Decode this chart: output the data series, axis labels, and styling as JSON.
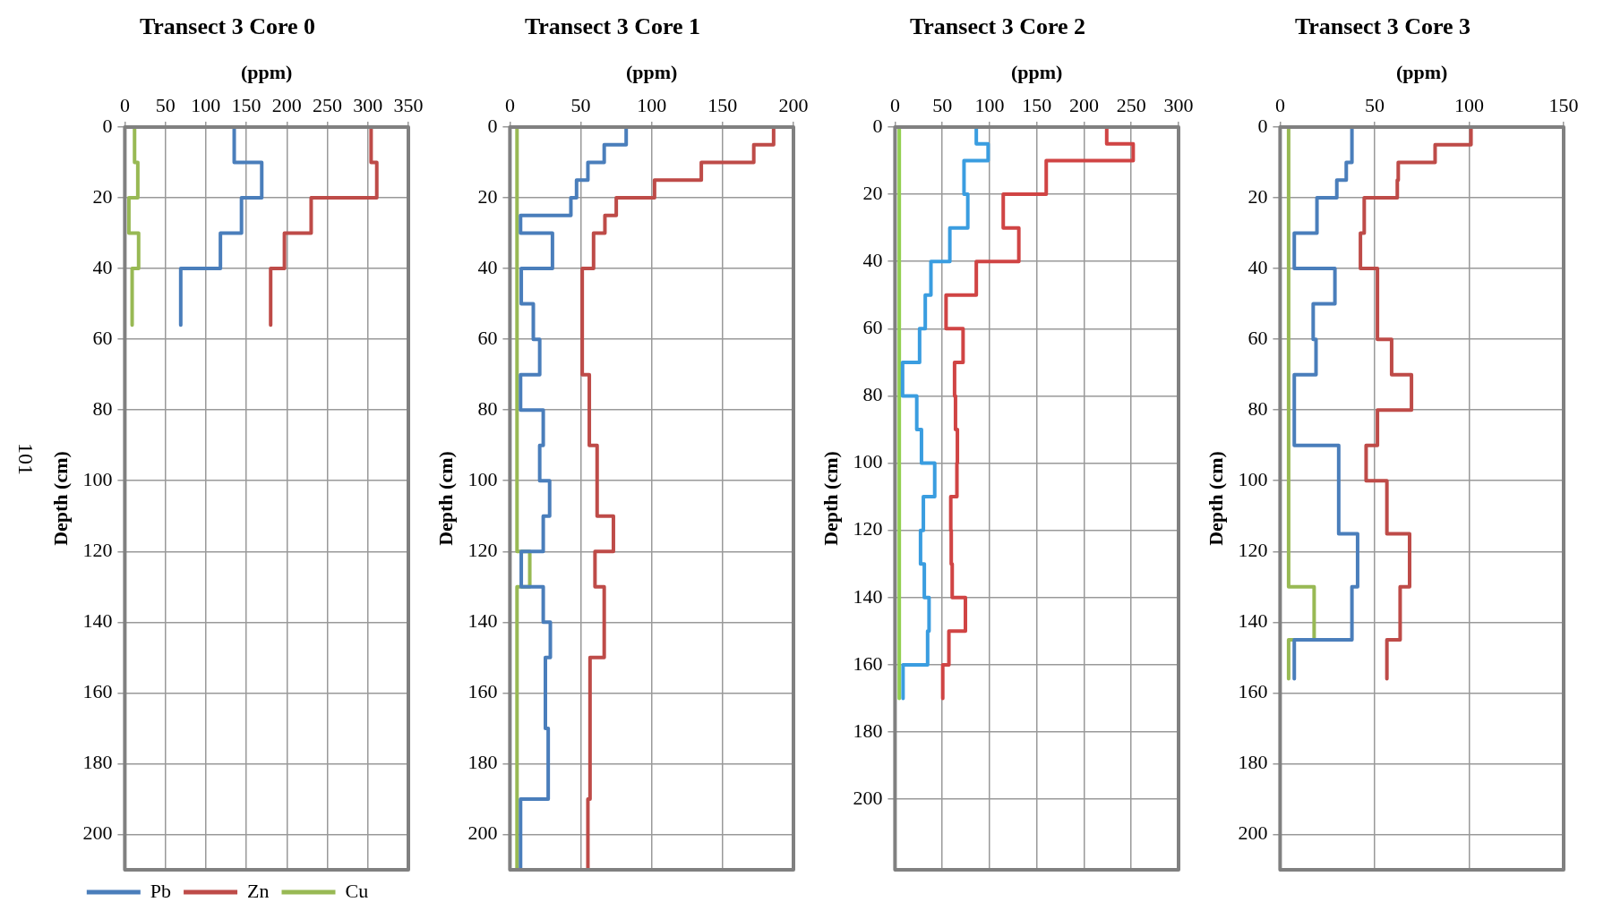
{
  "chart_data": [
    {
      "type": "line",
      "title": "Transect 3 Core 0",
      "xlabel": "(ppm)",
      "ylabel": "Depth (cm)",
      "orientation": "horizontal",
      "xlim": [
        0,
        350
      ],
      "xticks": [
        0,
        50,
        100,
        150,
        200,
        250,
        300,
        350
      ],
      "ylim": [
        210,
        0
      ],
      "yticks": [
        0,
        20,
        40,
        60,
        80,
        100,
        120,
        140,
        160,
        180,
        200
      ],
      "grid": true,
      "legend": "bottom",
      "marker": "none",
      "line_style": "solid",
      "annotations": [
        "101"
      ],
      "series": [
        {
          "name": "Pb",
          "color": "#4a7ebb",
          "x": [
            0,
            10,
            10,
            20,
            20,
            30,
            30,
            40,
            40,
            56
          ],
          "values": [
            135,
            135,
            169,
            169,
            144,
            144,
            118,
            118,
            69,
            69
          ]
        },
        {
          "name": "Zn",
          "color": "#be4b48",
          "x": [
            0,
            10,
            10,
            20,
            20,
            30,
            30,
            40,
            40,
            56
          ],
          "values": [
            304,
            304,
            311,
            311,
            230,
            230,
            197,
            197,
            180,
            180
          ]
        },
        {
          "name": "Cu",
          "color": "#98b954",
          "x": [
            0,
            10,
            10,
            20,
            20,
            30,
            30,
            40,
            40,
            56
          ],
          "values": [
            12,
            12,
            16,
            16,
            5,
            5,
            17,
            17,
            9,
            9
          ]
        }
      ]
    },
    {
      "type": "line",
      "title": "Transect 3 Core 1",
      "xlabel": "(ppm)",
      "ylabel": "Depth (cm)",
      "orientation": "horizontal",
      "xlim": [
        0,
        200
      ],
      "xticks": [
        0,
        50,
        100,
        150,
        200
      ],
      "ylim": [
        210,
        0
      ],
      "yticks": [
        0,
        20,
        40,
        60,
        80,
        100,
        120,
        140,
        160,
        180,
        200
      ],
      "grid": true,
      "marker": "none",
      "line_style": "solid",
      "series": [
        {
          "color": "#4a7ebb",
          "x": [
            0,
            5,
            5,
            10,
            10,
            15,
            15,
            20,
            20,
            25,
            25,
            30,
            30,
            40,
            40,
            50,
            50,
            60,
            60,
            70,
            70,
            80,
            80,
            90,
            90,
            100,
            100,
            110,
            110,
            120,
            120,
            130,
            130,
            140,
            140,
            150,
            150,
            170,
            170,
            190,
            190,
            210
          ],
          "values": [
            82,
            82,
            66.5,
            66.5,
            55,
            55,
            47,
            47,
            43,
            43,
            7.5,
            7.5,
            30,
            30,
            8,
            8,
            16.5,
            16.5,
            21,
            21,
            7.5,
            7.5,
            23.5,
            23.5,
            21,
            21,
            28,
            28,
            23.5,
            23.5,
            8,
            8,
            23.5,
            23.5,
            28.5,
            28.5,
            25,
            25,
            27,
            27,
            7.5,
            7.5
          ]
        },
        {
          "color": "#be4b48",
          "x": [
            0,
            5,
            5,
            10,
            10,
            15,
            15,
            20,
            20,
            25,
            25,
            30,
            30,
            40,
            40,
            70,
            70,
            90,
            90,
            110,
            110,
            120,
            120,
            130,
            130,
            150,
            150,
            190,
            190,
            210
          ],
          "values": [
            186,
            186,
            172,
            172,
            135,
            135,
            102,
            102,
            75,
            75,
            67,
            67,
            59,
            59,
            51,
            51,
            56,
            56,
            61.5,
            61.5,
            73,
            73,
            60,
            60,
            66.5,
            66.5,
            56.5,
            56.5,
            55,
            55
          ]
        },
        {
          "color": "#98b954",
          "x": [
            0,
            120,
            120,
            130,
            130,
            210
          ],
          "values": [
            5,
            5,
            14,
            14,
            5,
            5
          ]
        }
      ]
    },
    {
      "type": "line",
      "title": "Transect 3 Core 2",
      "xlabel": "(ppm)",
      "ylabel": "Depth (cm)",
      "orientation": "horizontal",
      "xlim": [
        0,
        300
      ],
      "xticks": [
        0,
        50,
        100,
        150,
        200,
        250,
        300
      ],
      "ylim": [
        221,
        0
      ],
      "yticks": [
        0,
        20,
        40,
        60,
        80,
        100,
        120,
        140,
        160,
        180,
        200
      ],
      "grid": true,
      "marker": "none",
      "line_style": "solid",
      "series": [
        {
          "color": "#3a9de0",
          "x": [
            0,
            5,
            5,
            10,
            10,
            20,
            20,
            30,
            30,
            40,
            40,
            50,
            50,
            60,
            60,
            70,
            70,
            80,
            80,
            90,
            90,
            100,
            100,
            110,
            110,
            120,
            120,
            130,
            130,
            140,
            140,
            150,
            150,
            160,
            160,
            170
          ],
          "values": [
            86,
            86,
            98.5,
            98.5,
            73,
            73,
            77,
            77,
            58,
            58,
            38,
            38,
            32,
            32,
            26,
            26,
            8,
            8,
            23,
            23,
            28,
            28,
            42,
            42,
            30,
            30,
            27,
            27,
            31,
            31,
            36,
            36,
            34.5,
            34.5,
            8.5,
            8.5
          ]
        },
        {
          "color": "#d04444",
          "x": [
            0,
            5,
            5,
            10,
            10,
            20,
            20,
            30,
            30,
            40,
            40,
            50,
            50,
            60,
            60,
            70,
            70,
            80,
            80,
            90,
            90,
            100,
            100,
            110,
            110,
            120,
            120,
            130,
            130,
            140,
            140,
            150,
            150,
            160,
            160,
            170
          ],
          "values": [
            224,
            224,
            252,
            252,
            160,
            160,
            114.5,
            114.5,
            131,
            131,
            86,
            86,
            54,
            54,
            72,
            72,
            63,
            63,
            64,
            64,
            66,
            66,
            65.5,
            65.5,
            59,
            59,
            59.5,
            59.5,
            60.5,
            60.5,
            74.5,
            74.5,
            57,
            57,
            50.5,
            50.5
          ]
        },
        {
          "color": "#92d050",
          "x": [
            0,
            170
          ],
          "values": [
            4.5,
            4.5
          ]
        }
      ]
    },
    {
      "type": "line",
      "title": "Transect 3 Core 3",
      "xlabel": "(ppm)",
      "ylabel": "Depth (cm)",
      "orientation": "horizontal",
      "xlim": [
        0,
        150
      ],
      "xticks": [
        0,
        50,
        100,
        150
      ],
      "ylim": [
        210,
        0
      ],
      "yticks": [
        0,
        20,
        40,
        60,
        80,
        100,
        120,
        140,
        160,
        180,
        200
      ],
      "grid": true,
      "marker": "none",
      "line_style": "solid",
      "series": [
        {
          "color": "#4a7ebb",
          "x": [
            0,
            10,
            10,
            15,
            15,
            20,
            20,
            30,
            30,
            40,
            40,
            50,
            50,
            60,
            60,
            70,
            70,
            90,
            90,
            115,
            115,
            130,
            130,
            145,
            145,
            156
          ],
          "values": [
            38,
            38,
            35,
            35,
            30,
            30,
            19.5,
            19.5,
            7.5,
            7.5,
            29,
            29,
            17.5,
            17.5,
            19,
            19,
            7.5,
            7.5,
            31,
            31,
            41,
            41,
            38,
            38,
            7.5,
            7.5
          ]
        },
        {
          "color": "#be4b48",
          "x": [
            0,
            5,
            5,
            10,
            10,
            15,
            15,
            20,
            20,
            30,
            30,
            40,
            40,
            60,
            60,
            70,
            70,
            80,
            80,
            90,
            90,
            100,
            100,
            115,
            115,
            130,
            130,
            145,
            145,
            156
          ],
          "values": [
            101,
            101,
            82,
            82,
            62.5,
            62.5,
            62,
            62,
            44.5,
            44.5,
            42.5,
            42.5,
            51.5,
            51.5,
            59,
            59,
            69.5,
            69.5,
            51.5,
            51.5,
            45.5,
            45.5,
            56.5,
            56.5,
            68.5,
            68.5,
            63.5,
            63.5,
            56.5,
            56.5
          ]
        },
        {
          "color": "#98b954",
          "x": [
            0,
            130,
            130,
            145,
            145,
            156
          ],
          "values": [
            4.5,
            4.5,
            18,
            18,
            4.5,
            4.5
          ]
        }
      ]
    }
  ]
}
